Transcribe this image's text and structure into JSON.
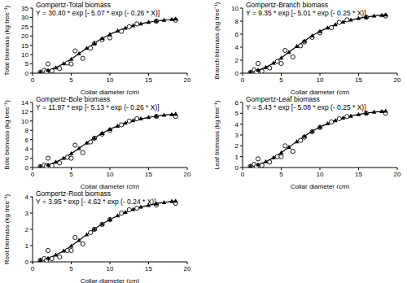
{
  "chart_data": [
    {
      "type": "scatter",
      "title": "Gompertz-Total biomass",
      "annotations": [
        "Y = 30.40 * exp [- 5.07 * exp (- 0.26 * X)]"
      ],
      "x_label": "Collar diameter (cm)",
      "y_label": "Total biomass (kg tree⁻¹)",
      "xlim": [
        0,
        20
      ],
      "xticks": [
        0,
        5,
        10,
        15,
        20
      ],
      "ylim": [
        0,
        35
      ],
      "yticks": [
        0,
        5,
        10,
        15,
        20,
        25,
        30,
        35
      ],
      "series": [
        {
          "type": "scatter",
          "marker": "open_circle",
          "color": "#000000",
          "x": [
            1,
            1.5,
            1.8,
            2,
            2.5,
            3.5,
            4.5,
            5,
            5.5,
            6.5,
            7.5,
            8,
            9,
            10,
            11.5,
            12.5,
            13.5,
            16,
            18.5
          ],
          "values": [
            0.5,
            1.5,
            0.8,
            5,
            1.2,
            2.5,
            5.5,
            5,
            12,
            8,
            13.5,
            16,
            18,
            19,
            22.5,
            25,
            26.5,
            28,
            28.5
          ]
        },
        {
          "type": "line",
          "marker": "triangle",
          "color": "#000000",
          "x": [
            1,
            2,
            3,
            4,
            5,
            6,
            7,
            8,
            9,
            10,
            11,
            12,
            13,
            14,
            15,
            16,
            17,
            18,
            18.5
          ],
          "values": [
            0.6,
            1.5,
            3.0,
            5.1,
            7.6,
            10.5,
            13.4,
            16.1,
            18.7,
            20.9,
            22.7,
            24.3,
            25.6,
            26.6,
            27.4,
            28.1,
            28.6,
            29.0,
            29.2
          ]
        }
      ]
    },
    {
      "type": "scatter",
      "title": "Gompertz-Branch biomass",
      "annotations": [
        "Y = 9.35 * exp [- 5.01 * exp (- 0.25 * X)]"
      ],
      "x_label": "Collar diameter (cm)",
      "y_label": "Branch biomass (kg tree⁻¹)",
      "xlim": [
        0,
        20
      ],
      "xticks": [
        0,
        5,
        10,
        15,
        20
      ],
      "ylim": [
        0,
        10
      ],
      "yticks": [
        0,
        2,
        4,
        6,
        8,
        10
      ],
      "series": [
        {
          "type": "scatter",
          "marker": "open_circle",
          "color": "#000000",
          "x": [
            1,
            1.5,
            1.8,
            2,
            2.5,
            3.5,
            4.5,
            5,
            5.5,
            6.5,
            7.5,
            8,
            9,
            10,
            11.5,
            12.5,
            13.5,
            16,
            18.5
          ],
          "values": [
            0.1,
            0.5,
            0.2,
            1.5,
            0.3,
            0.8,
            1.8,
            1.5,
            3.5,
            2.5,
            4.2,
            4.8,
            5.5,
            6.2,
            7,
            7.8,
            8.2,
            8.6,
            8.8
          ]
        },
        {
          "type": "line",
          "marker": "triangle",
          "color": "#000000",
          "x": [
            1,
            2,
            3,
            4,
            5,
            6,
            7,
            8,
            9,
            10,
            11,
            12,
            13,
            14,
            15,
            16,
            17,
            18,
            18.5
          ],
          "values": [
            0.18,
            0.46,
            0.92,
            1.57,
            2.34,
            3.23,
            4.12,
            4.95,
            5.75,
            6.43,
            6.98,
            7.47,
            7.87,
            8.18,
            8.43,
            8.64,
            8.8,
            8.92,
            8.98
          ]
        }
      ]
    },
    {
      "type": "scatter",
      "title": "Gompertz-Bole biomass",
      "annotations": [
        "Y = 11.97 * exp [- 5.13 * exp (- 0.26 * X)]"
      ],
      "x_label": "Collar diameter (cm)",
      "y_label": "Bole biomass (kg tree⁻¹)",
      "xlim": [
        0,
        20
      ],
      "xticks": [
        0,
        5,
        10,
        15,
        20
      ],
      "ylim": [
        0,
        14
      ],
      "yticks": [
        0,
        2,
        4,
        6,
        8,
        10,
        12,
        14
      ],
      "series": [
        {
          "type": "scatter",
          "marker": "open_circle",
          "color": "#000000",
          "x": [
            1,
            1.5,
            1.8,
            2,
            2.5,
            3.5,
            4.5,
            5,
            5.5,
            6.5,
            7.5,
            8,
            9,
            10,
            11.5,
            12.5,
            13.5,
            16,
            18.5
          ],
          "values": [
            0.2,
            0.5,
            0.3,
            2,
            0.4,
            1,
            2.2,
            2,
            4.8,
            3.2,
            5.5,
            6.3,
            7.2,
            8,
            9.2,
            10,
            10.5,
            11,
            11
          ]
        },
        {
          "type": "line",
          "marker": "triangle",
          "color": "#000000",
          "x": [
            1,
            2,
            3,
            4,
            5,
            6,
            7,
            8,
            9,
            10,
            11,
            12,
            13,
            14,
            15,
            16,
            17,
            18,
            18.5
          ],
          "values": [
            0.24,
            0.59,
            1.18,
            2.0,
            3.0,
            4.13,
            5.28,
            6.34,
            7.37,
            8.23,
            8.94,
            9.57,
            10.09,
            10.48,
            10.8,
            11.07,
            11.27,
            11.43,
            11.5
          ]
        }
      ]
    },
    {
      "type": "scatter",
      "title": "Gompertz-Leaf biomass",
      "annotations": [
        "Y = 5.43 * exp [- 5.08 * exp (- 0.25 * X)]"
      ],
      "x_label": "Collar diameter (cm)",
      "y_label": "Leaf biomass (kg tree⁻¹)",
      "xlim": [
        0,
        20
      ],
      "xticks": [
        0,
        5,
        10,
        15,
        20
      ],
      "ylim": [
        0,
        6
      ],
      "yticks": [
        0,
        1,
        2,
        3,
        4,
        5,
        6
      ],
      "series": [
        {
          "type": "scatter",
          "marker": "open_circle",
          "color": "#000000",
          "x": [
            1,
            1.5,
            1.8,
            2,
            2.5,
            3.5,
            4.5,
            5,
            5.5,
            6.5,
            7.5,
            8,
            9,
            10,
            11.5,
            12.5,
            13.5,
            16,
            18.5
          ],
          "values": [
            0.1,
            0.3,
            0.1,
            0.8,
            0.2,
            0.5,
            1,
            1,
            2,
            1.5,
            2.5,
            2.8,
            3.3,
            3.7,
            4.2,
            4.5,
            4.7,
            5,
            5
          ]
        },
        {
          "type": "line",
          "marker": "triangle",
          "color": "#000000",
          "x": [
            1,
            2,
            3,
            4,
            5,
            6,
            7,
            8,
            9,
            10,
            11,
            12,
            13,
            14,
            15,
            16,
            17,
            18,
            18.5
          ],
          "values": [
            0.11,
            0.27,
            0.54,
            0.91,
            1.36,
            1.88,
            2.39,
            2.88,
            3.34,
            3.73,
            4.05,
            4.34,
            4.57,
            4.75,
            4.89,
            5.02,
            5.11,
            5.18,
            5.22
          ]
        }
      ]
    },
    {
      "type": "scatter",
      "title": "Gompertz-Root biomass",
      "annotations": [
        "Y = 3.95 * exp [- 4.62 * exp (- 0.24 * X)]"
      ],
      "x_label": "Collar diameter (cm)",
      "y_label": "Root biomass (kg tree⁻¹)",
      "xlim": [
        0,
        20
      ],
      "xticks": [
        0,
        5,
        10,
        15,
        20
      ],
      "ylim": [
        0,
        4
      ],
      "yticks": [
        0,
        1,
        2,
        3,
        4
      ],
      "series": [
        {
          "type": "scatter",
          "marker": "open_circle",
          "color": "#000000",
          "x": [
            1,
            1.5,
            1.8,
            2,
            2.5,
            3.5,
            4.5,
            5,
            5.5,
            6.5,
            7.5,
            8,
            9,
            10,
            11.5,
            12.5,
            13.5,
            16,
            18.5
          ],
          "values": [
            0.1,
            0.2,
            0.1,
            0.7,
            0.2,
            0.3,
            0.7,
            0.7,
            1.5,
            1.1,
            1.8,
            2,
            2.3,
            2.6,
            3,
            3.2,
            3.3,
            3.5,
            3.6
          ]
        },
        {
          "type": "line",
          "marker": "triangle",
          "color": "#000000",
          "x": [
            1,
            2,
            3,
            4,
            5,
            6,
            7,
            8,
            9,
            10,
            11,
            12,
            13,
            14,
            15,
            16,
            17,
            18,
            18.5
          ],
          "values": [
            0.1,
            0.23,
            0.42,
            0.67,
            0.98,
            1.32,
            1.67,
            2.01,
            2.32,
            2.6,
            2.84,
            3.05,
            3.22,
            3.37,
            3.48,
            3.58,
            3.65,
            3.72,
            3.74
          ]
        }
      ]
    }
  ]
}
